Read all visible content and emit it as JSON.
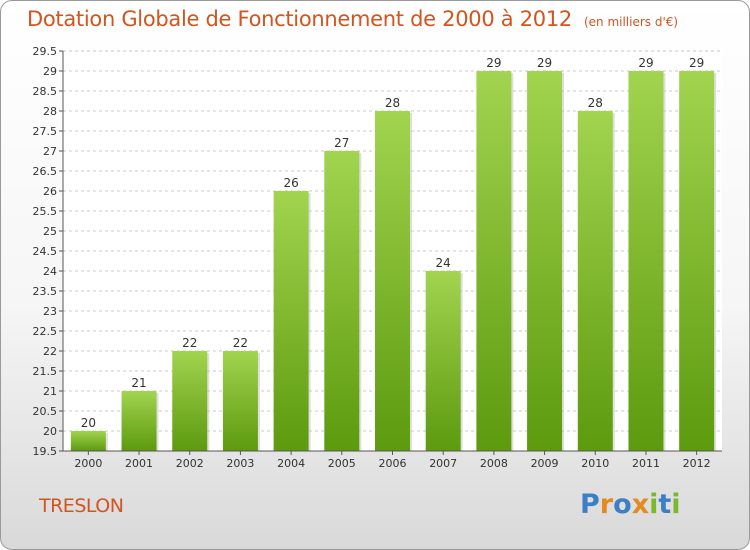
{
  "header": {
    "title": "Dotation Globale de Fonctionnement de 2000 à 2012",
    "subtitle": "(en milliers d'€)"
  },
  "commune_name": "TRESLON",
  "logo": {
    "letters": [
      "P",
      "r",
      "o",
      "x",
      "i",
      "t",
      "i"
    ],
    "colors": [
      "#3b7fc4",
      "#e58a1f",
      "#3b7fc4",
      "#e58a1f",
      "#7cb928",
      "#3b7fc4",
      "#7cb928"
    ]
  },
  "colors": {
    "bar_top": "#a2d44f",
    "bar_bottom": "#5c9a0e",
    "title": "#d2541e"
  },
  "chart_data": {
    "type": "bar",
    "categories": [
      "2000",
      "2001",
      "2002",
      "2003",
      "2004",
      "2005",
      "2006",
      "2007",
      "2008",
      "2009",
      "2010",
      "2011",
      "2012"
    ],
    "values": [
      20,
      21,
      22,
      22,
      26,
      27,
      28,
      24,
      29,
      29,
      28,
      29,
      29
    ],
    "data_labels": [
      "20",
      "21",
      "22",
      "22",
      "26",
      "27",
      "28",
      "24",
      "29",
      "29",
      "28",
      "29",
      "29"
    ],
    "y_ticks": [
      "19.5",
      "20",
      "20.5",
      "21",
      "21.5",
      "22",
      "22.5",
      "23",
      "23.5",
      "24",
      "24.5",
      "25",
      "25.5",
      "26",
      "26.5",
      "27",
      "27.5",
      "28",
      "28.5",
      "29",
      "29.5"
    ],
    "ylim": [
      19.5,
      29.5
    ],
    "grid": true
  }
}
